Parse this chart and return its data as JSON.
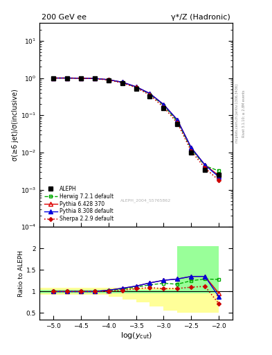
{
  "title_left": "200 GeV ee",
  "title_right": "γ*/Z (Hadronic)",
  "ylabel_main": "σ(≥6 jet)/σ(inclusive)",
  "ylabel_ratio": "Ratio to ALEPH",
  "xlabel": "log(y_{cut})",
  "right_label": "Rivet 3.1.10; ≥ 2.8M events",
  "right_label2": "mcplots.cern.ch [arXiv:1306.3436]",
  "watermark": "ALEPH_2004_S5765862",
  "xvals": [
    -5.0,
    -4.75,
    -4.5,
    -4.25,
    -4.0,
    -3.75,
    -3.5,
    -3.25,
    -3.0,
    -2.75,
    -2.5,
    -2.25,
    -2.0
  ],
  "aleph_y": [
    1.0,
    1.0,
    0.99,
    0.97,
    0.88,
    0.72,
    0.52,
    0.32,
    0.155,
    0.058,
    0.01,
    0.0034,
    0.0025
  ],
  "herwig_y": [
    1.0,
    1.0,
    0.99,
    0.975,
    0.9,
    0.76,
    0.57,
    0.37,
    0.185,
    0.068,
    0.0125,
    0.0044,
    0.0032
  ],
  "pythia6_y": [
    1.0,
    1.0,
    0.99,
    0.975,
    0.905,
    0.775,
    0.585,
    0.385,
    0.195,
    0.075,
    0.0135,
    0.0046,
    0.0024
  ],
  "pythia8_y": [
    1.0,
    1.0,
    0.99,
    0.975,
    0.905,
    0.775,
    0.585,
    0.385,
    0.195,
    0.075,
    0.0135,
    0.0046,
    0.0022
  ],
  "sherpa_y": [
    1.0,
    1.0,
    0.99,
    0.97,
    0.885,
    0.74,
    0.555,
    0.35,
    0.165,
    0.062,
    0.011,
    0.0038,
    0.0018
  ],
  "herwig_ratio": [
    1.0,
    1.0,
    1.0,
    1.0,
    1.02,
    1.055,
    1.1,
    1.155,
    1.19,
    1.17,
    1.25,
    1.29,
    1.28
  ],
  "pythia6_ratio": [
    1.0,
    1.0,
    1.0,
    1.0,
    1.03,
    1.075,
    1.125,
    1.2,
    1.26,
    1.29,
    1.35,
    1.35,
    0.96
  ],
  "pythia8_ratio": [
    1.0,
    1.0,
    1.0,
    1.0,
    1.03,
    1.075,
    1.125,
    1.2,
    1.26,
    1.29,
    1.35,
    1.35,
    0.88
  ],
  "sherpa_ratio": [
    1.0,
    1.0,
    1.0,
    1.0,
    1.005,
    1.027,
    1.065,
    1.09,
    1.065,
    1.07,
    1.1,
    1.12,
    0.72
  ],
  "colors": {
    "aleph": "#000000",
    "herwig": "#00aa00",
    "pythia6": "#dd0000",
    "pythia8": "#0000dd",
    "sherpa": "#cc0000"
  },
  "bg_color": "#ffffff",
  "xlim": [
    -5.25,
    -1.75
  ],
  "ylim_main": [
    0.0001,
    30
  ],
  "ylim_ratio": [
    0.35,
    2.5
  ]
}
